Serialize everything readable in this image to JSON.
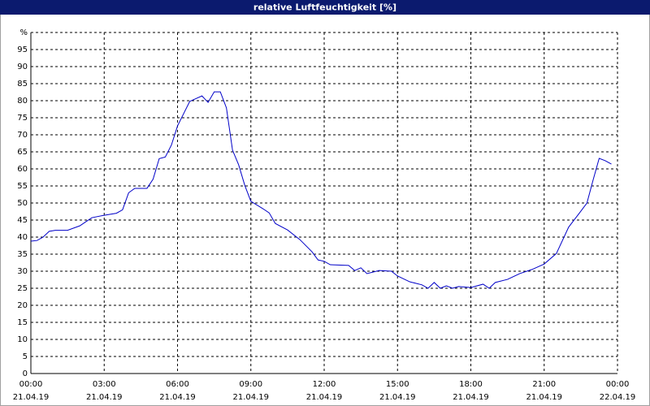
{
  "chart_data": {
    "type": "line",
    "title": "relative Luftfeuchtigkeit [%]",
    "series": [
      {
        "color": "#0000c8",
        "x": [
          0,
          0.25,
          0.5,
          0.75,
          1,
          1.5,
          2,
          2.25,
          2.5,
          3,
          3.5,
          3.75,
          4,
          4.25,
          4.75,
          5,
          5.25,
          5.5,
          5.75,
          6,
          6.25,
          6.5,
          7,
          7.25,
          7.5,
          7.75,
          8,
          8.25,
          8.5,
          8.75,
          9,
          9.5,
          9.75,
          10,
          10.5,
          11,
          11.5,
          11.75,
          12,
          12.25,
          13,
          13.25,
          13.5,
          13.75,
          14.25,
          14.75,
          15,
          15.5,
          16,
          16.25,
          16.5,
          16.75,
          17,
          17.25,
          17.5,
          18,
          18.5,
          18.75,
          19,
          19.5,
          20,
          20.5,
          21,
          21.5,
          22,
          22.5,
          22.75,
          23,
          23.25,
          23.5,
          23.75
        ],
        "values": [
          38.8,
          39,
          40,
          41.7,
          42,
          42,
          43.3,
          44.5,
          45.7,
          46.4,
          47,
          48,
          53,
          54.3,
          54.3,
          57,
          63,
          63.5,
          67,
          72.6,
          76.2,
          79.8,
          81.4,
          79.5,
          82.6,
          82.6,
          77.9,
          65.5,
          61.2,
          55.2,
          50.5,
          48.3,
          47.1,
          44,
          42.1,
          39.3,
          35.7,
          33.3,
          32.9,
          31.9,
          31.7,
          30.2,
          31,
          29.3,
          30.2,
          30,
          28.6,
          26.9,
          26,
          25,
          26.7,
          25,
          25.7,
          25,
          25.5,
          25.2,
          26.2,
          25,
          26.7,
          27.6,
          29.3,
          30.5,
          32.1,
          35.2,
          42.9,
          47.6,
          50,
          56.7,
          63.1,
          62.4,
          61.4
        ]
      }
    ],
    "xlim": [
      0,
      24
    ],
    "xticks": [
      {
        "value": 0,
        "label": "00:00"
      },
      {
        "value": 3,
        "label": "03:00"
      },
      {
        "value": 6,
        "label": "06:00"
      },
      {
        "value": 9,
        "label": "09:00"
      },
      {
        "value": 12,
        "label": "12:00"
      },
      {
        "value": 15,
        "label": "15:00"
      },
      {
        "value": 18,
        "label": "18:00"
      },
      {
        "value": 21,
        "label": "21:00"
      },
      {
        "value": 24,
        "label": "00:00"
      }
    ],
    "xtick_dates": [
      "21.04.19",
      "21.04.19",
      "21.04.19",
      "21.04.19",
      "21.04.19",
      "21.04.19",
      "21.04.19",
      "21.04.19",
      "22.04.19"
    ],
    "ylim": [
      0,
      100
    ],
    "yticks": [
      0,
      5,
      10,
      15,
      20,
      25,
      30,
      35,
      40,
      45,
      50,
      55,
      60,
      65,
      70,
      75,
      80,
      85,
      90,
      95,
      {
        "value": 100,
        "label": "%"
      }
    ],
    "grid": true
  }
}
